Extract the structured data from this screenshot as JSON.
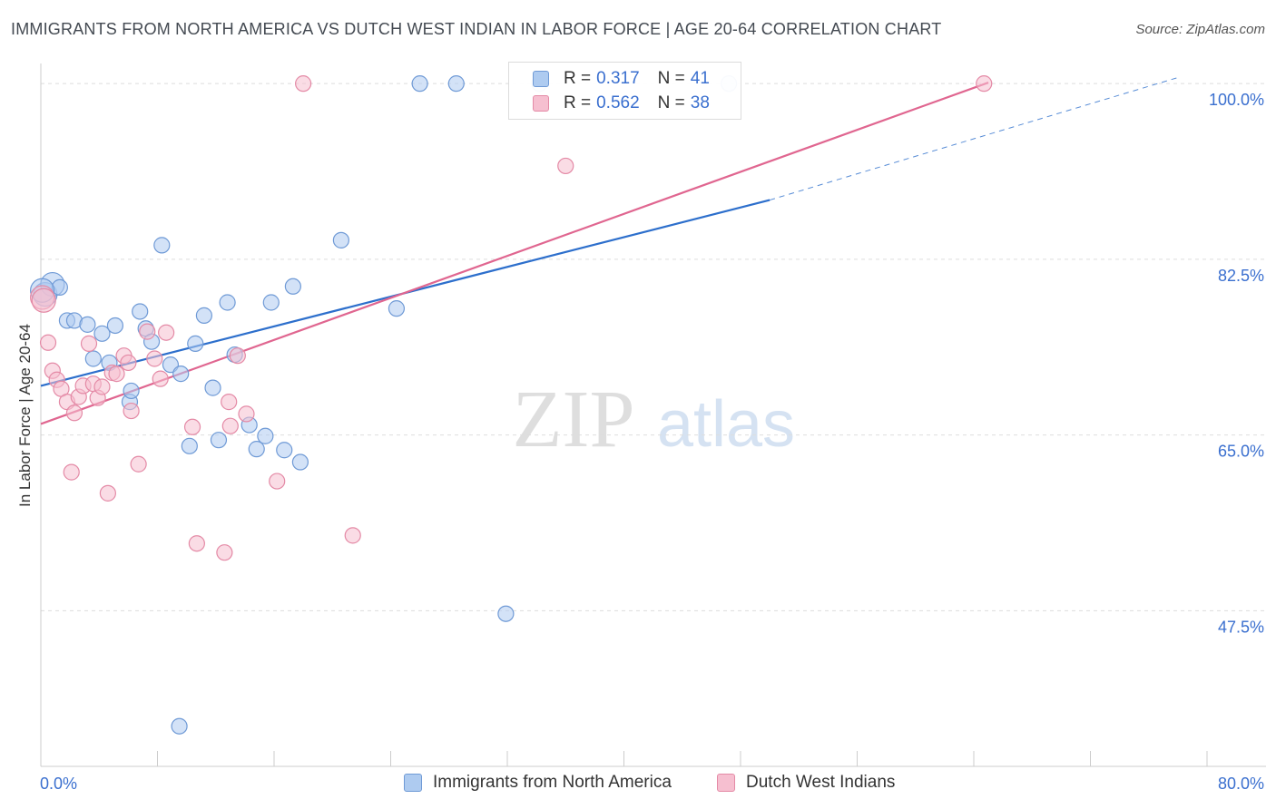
{
  "title": "IMMIGRANTS FROM NORTH AMERICA VS DUTCH WEST INDIAN IN LABOR FORCE | AGE 20-64 CORRELATION CHART",
  "source": "Source: ZipAtlas.com",
  "watermark": {
    "zip": "ZIP",
    "atlas": "atlas"
  },
  "colors": {
    "blue_fill": "#aecbf0",
    "blue_stroke": "#6f9ad6",
    "blue_line": "#2d6fcc",
    "pink_fill": "#f6bfd0",
    "pink_stroke": "#e48aa6",
    "pink_line": "#e06690",
    "tick_label": "#3a6fcf",
    "grid": "#dddddd"
  },
  "legend": {
    "rows": [
      {
        "r_label": "R =",
        "r_value": "0.317",
        "n_label": "N =",
        "n_value": "41"
      },
      {
        "r_label": "R =",
        "r_value": "0.562",
        "n_label": "N =",
        "n_value": "38"
      }
    ]
  },
  "chart_data": {
    "type": "scatter",
    "title": "IMMIGRANTS FROM NORTH AMERICA VS DUTCH WEST INDIAN IN LABOR FORCE | AGE 20-64 CORRELATION CHART",
    "xlabel": "",
    "ylabel": "In Labor Force | Age 20-64",
    "xlim": [
      0,
      80
    ],
    "ylim": [
      32,
      102
    ],
    "x_tick_labels": [
      "0.0%",
      "80.0%"
    ],
    "y_ticks": [
      47.5,
      65.0,
      82.5,
      100.0
    ],
    "y_tick_labels": [
      "47.5%",
      "65.0%",
      "82.5%",
      "100.0%"
    ],
    "grid": true,
    "legend_position": "top-center",
    "series": [
      {
        "name": "Immigrants from North America",
        "color": "#6f9ad6",
        "r": 0.317,
        "n": 41,
        "trend": {
          "x0": 0,
          "y0": 69.9,
          "x1": 50,
          "y1": 88.4,
          "dash_to_x": 78,
          "dash_to_y": 100.6
        },
        "points": [
          [
            0.3,
            79.0
          ],
          [
            0.8,
            80.0
          ],
          [
            1.3,
            79.7
          ],
          [
            1.8,
            76.4
          ],
          [
            2.3,
            76.4
          ],
          [
            3.2,
            76.0
          ],
          [
            4.2,
            75.1
          ],
          [
            3.6,
            72.6
          ],
          [
            4.7,
            72.2
          ],
          [
            5.1,
            75.9
          ],
          [
            6.1,
            68.3
          ],
          [
            6.2,
            69.4
          ],
          [
            6.8,
            77.3
          ],
          [
            7.2,
            75.6
          ],
          [
            7.6,
            74.3
          ],
          [
            8.3,
            83.9
          ],
          [
            8.9,
            72.0
          ],
          [
            9.6,
            71.1
          ],
          [
            10.2,
            63.9
          ],
          [
            10.6,
            74.1
          ],
          [
            11.2,
            76.9
          ],
          [
            11.8,
            69.7
          ],
          [
            12.2,
            64.5
          ],
          [
            12.8,
            78.2
          ],
          [
            13.3,
            73.0
          ],
          [
            14.3,
            66.0
          ],
          [
            14.8,
            63.6
          ],
          [
            15.4,
            64.9
          ],
          [
            15.8,
            78.2
          ],
          [
            16.7,
            63.5
          ],
          [
            17.3,
            79.8
          ],
          [
            17.8,
            62.3
          ],
          [
            20.6,
            84.4
          ],
          [
            24.4,
            77.6
          ],
          [
            26.0,
            100.0
          ],
          [
            28.5,
            100.0
          ],
          [
            31.9,
            47.2
          ],
          [
            34.2,
            100.0
          ],
          [
            47.2,
            100.0
          ],
          [
            9.5,
            36.0
          ],
          [
            0.1,
            79.4
          ]
        ]
      },
      {
        "name": "Dutch West Indians",
        "color": "#e48aa6",
        "r": 0.562,
        "n": 38,
        "trend": {
          "x0": 0,
          "y0": 66.1,
          "x1": 65,
          "y1": 100.1
        },
        "points": [
          [
            0.1,
            78.7
          ],
          [
            0.5,
            74.2
          ],
          [
            0.8,
            71.4
          ],
          [
            1.1,
            70.5
          ],
          [
            1.4,
            69.6
          ],
          [
            1.8,
            68.3
          ],
          [
            2.1,
            61.3
          ],
          [
            2.3,
            67.2
          ],
          [
            2.6,
            68.8
          ],
          [
            2.9,
            69.9
          ],
          [
            3.3,
            74.1
          ],
          [
            3.6,
            70.1
          ],
          [
            3.9,
            68.7
          ],
          [
            4.2,
            69.8
          ],
          [
            4.6,
            59.2
          ],
          [
            4.9,
            71.2
          ],
          [
            5.2,
            71.1
          ],
          [
            5.7,
            72.9
          ],
          [
            6.0,
            72.2
          ],
          [
            6.2,
            67.4
          ],
          [
            6.7,
            62.1
          ],
          [
            7.3,
            75.3
          ],
          [
            7.8,
            72.6
          ],
          [
            8.2,
            70.6
          ],
          [
            8.6,
            75.2
          ],
          [
            10.4,
            65.8
          ],
          [
            10.7,
            54.2
          ],
          [
            12.6,
            53.3
          ],
          [
            12.9,
            68.3
          ],
          [
            13.0,
            65.9
          ],
          [
            13.5,
            72.9
          ],
          [
            14.1,
            67.1
          ],
          [
            16.2,
            60.4
          ],
          [
            18.0,
            100.0
          ],
          [
            21.4,
            55.0
          ],
          [
            36.0,
            91.8
          ],
          [
            64.7,
            100.0
          ],
          [
            0.2,
            78.4
          ]
        ]
      }
    ]
  }
}
